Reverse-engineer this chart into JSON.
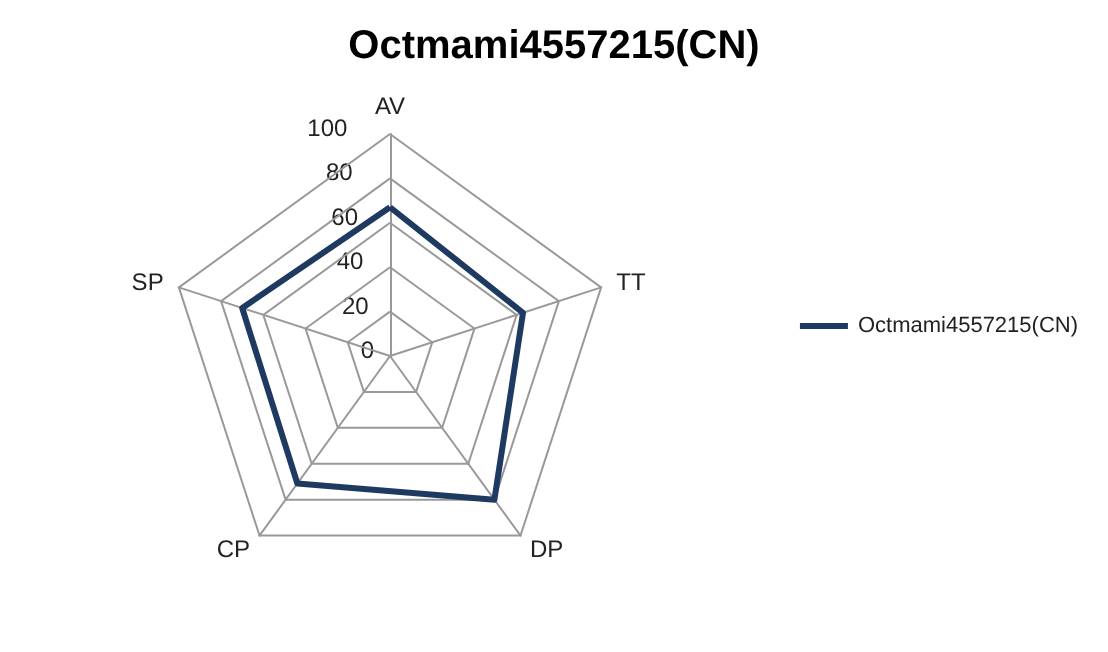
{
  "chart_data": {
    "type": "radar",
    "title": "Octmami4557215(CN)",
    "categories": [
      "AV",
      "TT",
      "DP",
      "CP",
      "SP"
    ],
    "series": [
      {
        "name": "Octmami4557215(CN)",
        "color": "#1f3a60",
        "values": [
          67,
          63,
          80,
          71,
          70
        ]
      }
    ],
    "ylim": [
      0,
      100
    ],
    "yticks": [
      0,
      20,
      40,
      60,
      80,
      100
    ],
    "grid": true,
    "legend": "right",
    "marker": "none"
  }
}
